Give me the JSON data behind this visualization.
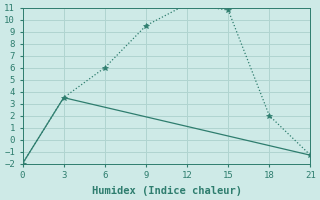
{
  "xlabel": "Humidex (Indice chaleur)",
  "bg_color": "#ceeae7",
  "grid_color": "#b0d4d0",
  "line_color": "#2e7d6e",
  "line1_x": [
    0,
    3,
    6,
    9,
    12,
    15,
    18,
    21
  ],
  "line1_y": [
    -2,
    3.5,
    6.0,
    9.5,
    11.3,
    10.8,
    2.0,
    -1.3
  ],
  "line2_x": [
    0,
    3,
    21
  ],
  "line2_y": [
    -2,
    3.5,
    -1.3
  ],
  "xlim": [
    0,
    21
  ],
  "ylim": [
    -2,
    11
  ],
  "xticks": [
    0,
    3,
    6,
    9,
    12,
    15,
    18,
    21
  ],
  "yticks": [
    -2,
    -1,
    0,
    1,
    2,
    3,
    4,
    5,
    6,
    7,
    8,
    9,
    10,
    11
  ],
  "font_family": "monospace",
  "tick_fontsize": 6.5,
  "xlabel_fontsize": 7.5
}
